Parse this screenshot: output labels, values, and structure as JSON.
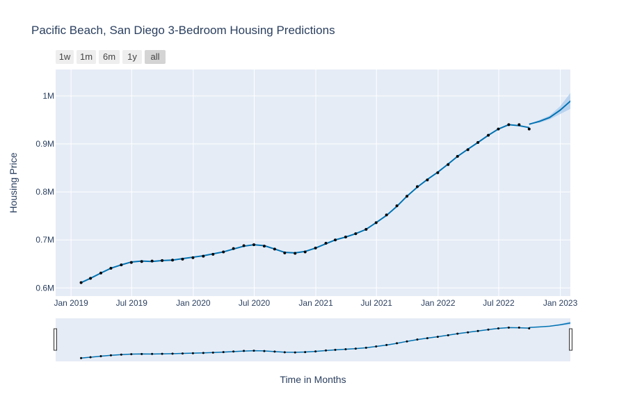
{
  "chart_data": {
    "type": "line",
    "title": "Pacific Beach, San Diego 3-Bedroom Housing Predictions",
    "xlabel": "Time in Months",
    "ylabel": "Housing Price",
    "range_buttons": [
      "1w",
      "1m",
      "6m",
      "1y",
      "all"
    ],
    "active_range": "all",
    "x_tick_labels": [
      "Jan 2019",
      "Jul 2019",
      "Jan 2020",
      "Jul 2020",
      "Jan 2021",
      "Jul 2021",
      "Jan 2022",
      "Jul 2022",
      "Jan 2023"
    ],
    "y_tick_labels": [
      "0.6M",
      "0.7M",
      "0.8M",
      "0.9M",
      "1M"
    ],
    "y_ticks": [
      600000,
      700000,
      800000,
      900000,
      1000000
    ],
    "xlim": [
      "2018-11-16",
      "2023-01-31"
    ],
    "ylim": [
      583000,
      1055000
    ],
    "grid": true,
    "legend": "none",
    "series": [
      {
        "type": "markers",
        "x": [
          "2019-01-31",
          "2019-02-28",
          "2019-03-31",
          "2019-04-30",
          "2019-05-31",
          "2019-06-30",
          "2019-07-31",
          "2019-08-31",
          "2019-09-30",
          "2019-10-31",
          "2019-11-30",
          "2019-12-31",
          "2020-01-31",
          "2020-02-29",
          "2020-03-31",
          "2020-04-30",
          "2020-05-31",
          "2020-06-30",
          "2020-07-31",
          "2020-08-31",
          "2020-09-30",
          "2020-10-31",
          "2020-11-30",
          "2020-12-31",
          "2021-01-31",
          "2021-02-28",
          "2021-03-31",
          "2021-04-30",
          "2021-05-31",
          "2021-06-30",
          "2021-07-31",
          "2021-08-31",
          "2021-09-30",
          "2021-10-31",
          "2021-11-30",
          "2021-12-31",
          "2022-01-31",
          "2022-02-28",
          "2022-03-31",
          "2022-04-30",
          "2022-05-31",
          "2022-06-30",
          "2022-07-31",
          "2022-08-31",
          "2022-09-30"
        ],
        "y": [
          611000,
          620000,
          631000,
          641000,
          648000,
          653000,
          655000,
          656000,
          657000,
          658000,
          660000,
          663000,
          666000,
          670000,
          675000,
          682000,
          688000,
          690000,
          687000,
          681000,
          673000,
          672000,
          675000,
          683000,
          693000,
          700000,
          706000,
          713000,
          722000,
          736000,
          752000,
          771000,
          791000,
          811000,
          825000,
          840000,
          857000,
          874000,
          888000,
          903000,
          918000,
          931000,
          940000,
          940000,
          931000
        ]
      },
      {
        "type": "line",
        "x": [
          "2019-01-31",
          "2019-02-28",
          "2019-03-31",
          "2019-04-30",
          "2019-05-31",
          "2019-06-30",
          "2019-07-31",
          "2019-08-31",
          "2019-09-30",
          "2019-10-31",
          "2019-11-30",
          "2019-12-31",
          "2020-01-31",
          "2020-02-29",
          "2020-03-31",
          "2020-04-30",
          "2020-05-31",
          "2020-06-30",
          "2020-07-31",
          "2020-08-31",
          "2020-09-30",
          "2020-10-31",
          "2020-11-30",
          "2020-12-31",
          "2021-01-31",
          "2021-02-28",
          "2021-03-31",
          "2021-04-30",
          "2021-05-31",
          "2021-06-30",
          "2021-07-31",
          "2021-08-31",
          "2021-09-30",
          "2021-10-31",
          "2021-11-30",
          "2021-12-31",
          "2022-01-31",
          "2022-02-28",
          "2022-03-31",
          "2022-04-30",
          "2022-05-31",
          "2022-06-30",
          "2022-07-31",
          "2022-08-31",
          "2022-09-30"
        ],
        "y": [
          611000,
          620000,
          631000,
          641000,
          648000,
          654000,
          656000,
          655000,
          657000,
          658000,
          661000,
          664000,
          667000,
          671000,
          675000,
          681000,
          687000,
          690000,
          688000,
          681000,
          674000,
          673000,
          676000,
          683000,
          692000,
          700000,
          706000,
          713000,
          722000,
          736000,
          751000,
          770000,
          791000,
          810000,
          826000,
          841000,
          858000,
          874000,
          889000,
          903000,
          918000,
          931000,
          940000,
          938000,
          934000
        ]
      },
      {
        "type": "forecast",
        "x": [
          "2022-09-30",
          "2022-10-31",
          "2022-11-30",
          "2022-12-31",
          "2023-01-31"
        ],
        "y": [
          941000,
          947000,
          955000,
          970000,
          989000
        ],
        "y_upper": [
          941000,
          950000,
          959000,
          978000,
          1006000
        ],
        "y_lower": [
          941000,
          944000,
          951000,
          962000,
          973000
        ],
        "x_end": "2023-02-28",
        "y_end": 1008000,
        "y_upper_end": 1030000,
        "y_lower_end": 982000
      }
    ]
  },
  "colors": {
    "plot_bg": "#e5ecf6",
    "grid": "#ffffff",
    "line": "#0072b2",
    "markers": "#000000",
    "band": "#a6c9ec",
    "text": "#2a3f5f"
  }
}
